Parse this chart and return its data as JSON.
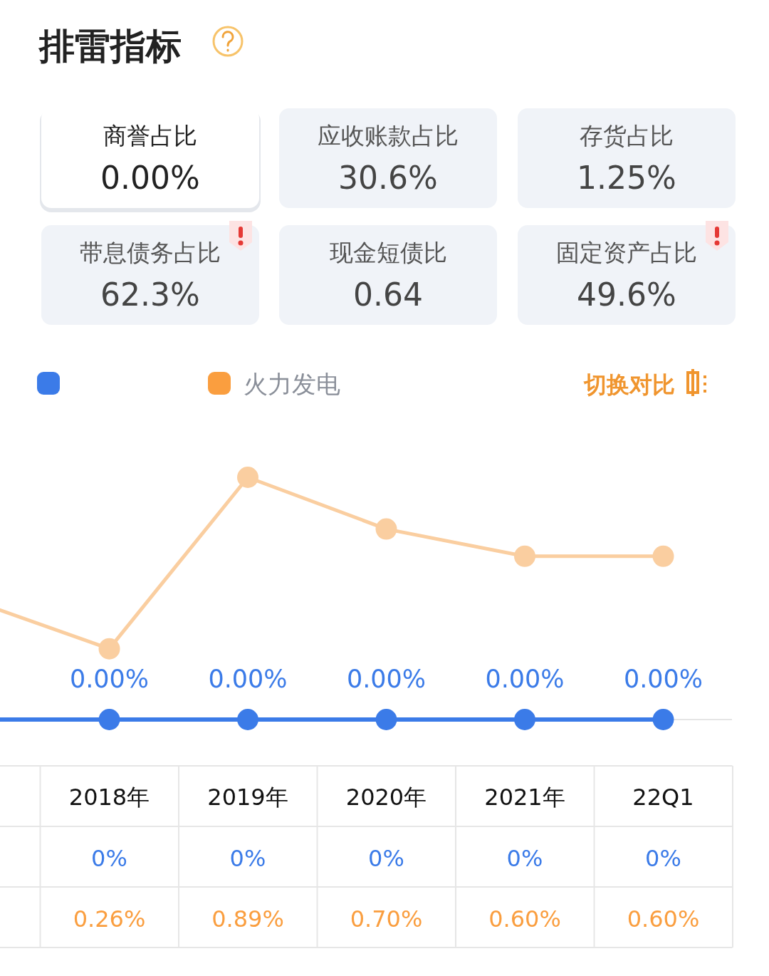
{
  "chart_data": [
    {
      "type": "other",
      "title": "排雷指标",
      "annotations": [
        "商誉占比",
        "0.00%",
        "应收账款占比",
        "30.6%",
        "存货占比",
        "1.25%",
        "带息债务占比",
        "62.3%",
        "现金短债比",
        "0.64",
        "固定资产占比",
        "49.6%"
      ]
    },
    {
      "type": "line",
      "categories": [
        null,
        "2018年",
        "2019年",
        "2020年",
        "2021年",
        "22Q1"
      ],
      "legend": "top left",
      "marker": "circle",
      "series": [
        {
          "color": "#3b7be8",
          "values": [
            0,
            0,
            0,
            0,
            0,
            0
          ],
          "value_labels": [
            null,
            "0%",
            "0%",
            "0%",
            "0%",
            "0%"
          ]
        },
        {
          "name": "火力发电",
          "color": "#facea0",
          "values": [
            0.44,
            0.26,
            0.89,
            0.7,
            0.6,
            0.6
          ],
          "value_labels": [
            null,
            "0.26%",
            "0.89%",
            "0.70%",
            "0.60%",
            "0.60%"
          ]
        }
      ],
      "annotations": [
        {
          "text": "0.00%",
          "x": "2018年",
          "y": 0
        },
        {
          "text": "0.00%",
          "x": "2019年",
          "y": 0
        },
        {
          "text": "0.00%",
          "x": "2020年",
          "y": 0
        },
        {
          "text": "0.00%",
          "x": "2021年",
          "y": 0
        },
        {
          "text": "0.00%",
          "x": "22Q1",
          "y": 0
        },
        "切换对比"
      ]
    }
  ]
}
